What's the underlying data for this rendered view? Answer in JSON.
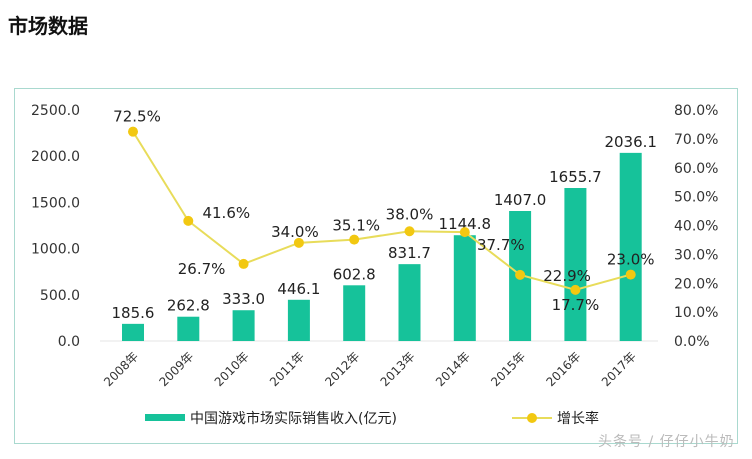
{
  "title": "市场数据",
  "watermark": "头条号 / 仔仔小牛奶",
  "colors": {
    "bar": "#16c29a",
    "line": "#e8dc5a",
    "marker": "#f2c811"
  },
  "chart_data": {
    "type": "bar+line",
    "categories": [
      "2008年",
      "2009年",
      "2010年",
      "2011年",
      "2012年",
      "2013年",
      "2014年",
      "2015年",
      "2016年",
      "2017年"
    ],
    "series": [
      {
        "name": "中国游戏市场实际销售收入(亿元)",
        "type": "bar",
        "axis": "left",
        "values": [
          185.6,
          262.8,
          333.0,
          446.1,
          602.8,
          831.7,
          1144.8,
          1407.0,
          1655.7,
          2036.1
        ],
        "labels": [
          "185.6",
          "262.8",
          "333.0",
          "446.1",
          "602.8",
          "831.7",
          "1144.8",
          "1407.0",
          "1655.7",
          "2036.1"
        ]
      },
      {
        "name": "增长率",
        "type": "line",
        "axis": "right",
        "values": [
          72.5,
          41.6,
          26.7,
          34.0,
          35.1,
          38.0,
          37.7,
          22.9,
          17.7,
          23.0
        ],
        "labels": [
          "72.5%",
          "41.6%",
          "26.7%",
          "34.0%",
          "35.1%",
          "38.0%",
          "37.7%",
          "22.9%",
          "17.7%",
          "23.0%"
        ]
      }
    ],
    "yleft": {
      "lim": [
        0,
        2500
      ],
      "ticks": [
        "0.0",
        "500.0",
        "1000.0",
        "1500.0",
        "2000.0",
        "2500.0"
      ]
    },
    "yright": {
      "lim": [
        0,
        80
      ],
      "ticks": [
        "0.0%",
        "10.0%",
        "20.0%",
        "30.0%",
        "40.0%",
        "50.0%",
        "60.0%",
        "70.0%",
        "80.0%"
      ]
    },
    "grid": false,
    "legend": "bottom"
  }
}
